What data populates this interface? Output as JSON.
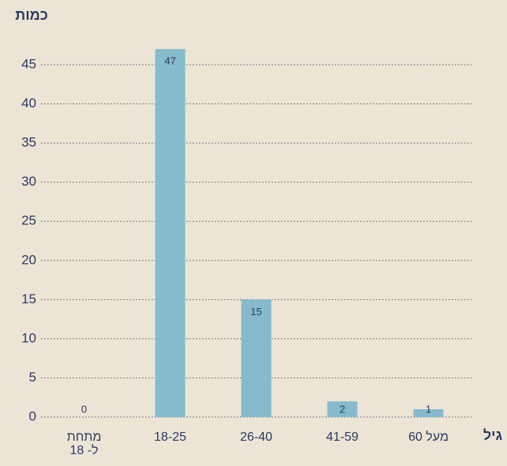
{
  "chart_data": {
    "type": "bar",
    "y_label": "כמות",
    "x_label": "גיל",
    "categories": [
      "מתחת ל- 18",
      "18-25",
      "26-40",
      "41-59",
      "מעל 60"
    ],
    "values": [
      0,
      47,
      15,
      2,
      1
    ],
    "color": "#86bacd",
    "ylim": [
      0,
      45
    ],
    "yticks": [
      0,
      5,
      10,
      15,
      20,
      25,
      30,
      35,
      40,
      45
    ],
    "grid": true
  }
}
